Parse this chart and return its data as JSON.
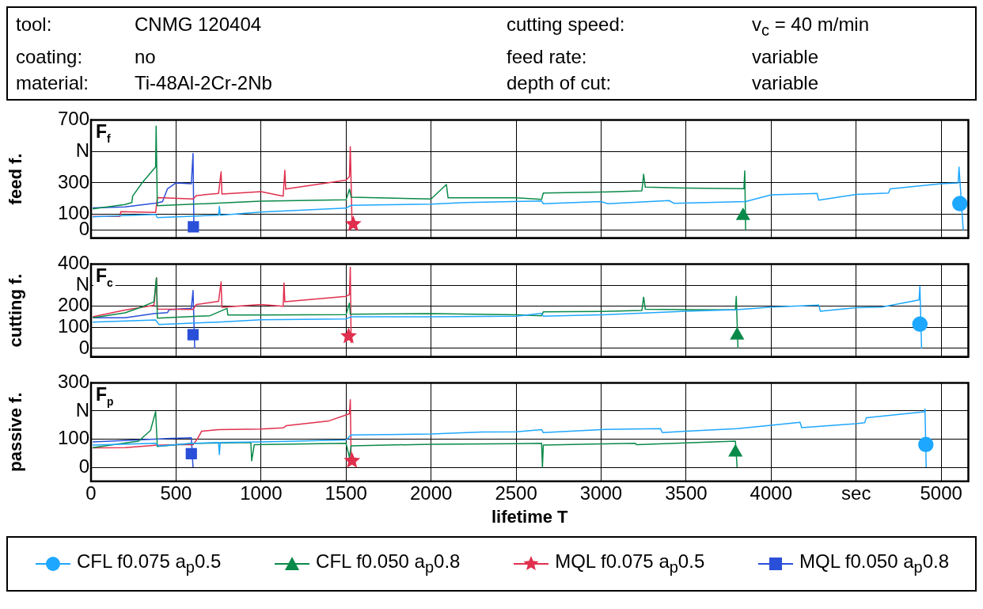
{
  "chart_data": [
    {
      "type": "other",
      "annotations": [
        "tool:",
        "CNMG 120404",
        "cutting speed:",
        "v$_{c}$ = 40 m/min",
        "coating:",
        "no",
        "feed rate:",
        "variable",
        "material:",
        "Ti-48Al-2Cr-2Nb",
        "depth of cut:",
        "variable"
      ]
    },
    {
      "type": "line",
      "ylabel": "feed f.",
      "annotations": [
        "F$_{f}$"
      ],
      "xlim": [
        0,
        5160
      ],
      "ylim": [
        -50,
        700
      ],
      "xticks": [
        0,
        500,
        1000,
        1500,
        2000,
        2500,
        3000,
        3500,
        4000,
        4500,
        5000
      ],
      "yticks": [
        0,
        100,
        300,
        {
          "value": 500,
          "label": "N"
        },
        700
      ],
      "grid": true,
      "tick_labels": "y",
      "series": [
        {
          "color": "#1ea7ff",
          "x": [
            10,
            380,
            390,
            750,
            755,
            760,
            1000,
            1500,
            1530,
            2000,
            2200,
            2650,
            2660,
            3000,
            3040,
            3400,
            3430,
            3850,
            4000,
            4270,
            4280,
            4500,
            4690,
            4700,
            5000,
            5100,
            5105,
            5130
          ],
          "values": [
            85,
            100,
            80,
            95,
            150,
            95,
            115,
            140,
            158,
            165,
            175,
            185,
            168,
            182,
            168,
            188,
            170,
            182,
            224,
            233,
            191,
            227,
            236,
            262,
            295,
            300,
            400,
            0
          ]
        },
        {
          "color": "#0a8a4a",
          "x": [
            10,
            200,
            240,
            245,
            300,
            380,
            383,
            390,
            1000,
            1500,
            1520,
            1530,
            2000,
            2090,
            2100,
            2500,
            2650,
            2660,
            3000,
            3240,
            3250,
            3260,
            3500,
            3840,
            3845,
            3850
          ],
          "values": [
            135,
            163,
            175,
            216,
            300,
            402,
            660,
            155,
            184,
            193,
            260,
            210,
            198,
            290,
            205,
            205,
            195,
            236,
            242,
            250,
            355,
            273,
            267,
            264,
            376,
            0
          ]
        },
        {
          "color": "#e0304e",
          "x": [
            10,
            170,
            175,
            380,
            390,
            600,
            620,
            750,
            765,
            770,
            1000,
            1130,
            1140,
            1145,
            1150,
            1500,
            1520,
            1525,
            1535
          ],
          "values": [
            88,
            88,
            118,
            112,
            207,
            198,
            220,
            233,
            370,
            230,
            245,
            216,
            380,
            260,
            262,
            317,
            340,
            530,
            50
          ]
        },
        {
          "color": "#2a4fd8",
          "x": [
            10,
            200,
            380,
            420,
            450,
            500,
            590,
            600,
            605
          ],
          "values": [
            141,
            148,
            172,
            180,
            263,
            300,
            295,
            487,
            20
          ]
        },
        {
          "type": "scatter",
          "marker": "circle",
          "color": "#1ea7ff",
          "x": [
            5110
          ],
          "values": [
            169
          ]
        },
        {
          "type": "scatter",
          "marker": "triangle",
          "color": "#0a8a4a",
          "x": [
            3835
          ],
          "values": [
            91
          ]
        },
        {
          "type": "scatter",
          "marker": "star",
          "color": "#e0304e",
          "x": [
            1542
          ],
          "values": [
            39
          ]
        },
        {
          "type": "scatter",
          "marker": "square",
          "color": "#2a4fd8",
          "x": [
            602
          ],
          "values": [
            22
          ]
        }
      ]
    },
    {
      "type": "line",
      "ylabel": "cutting f.",
      "annotations": [
        "F$_{c}$"
      ],
      "xlim": [
        0,
        5160
      ],
      "ylim": [
        -40,
        400
      ],
      "xticks": [
        0,
        500,
        1000,
        1500,
        2000,
        2500,
        3000,
        3500,
        4000,
        4500,
        5000
      ],
      "yticks": [
        0,
        100,
        200,
        {
          "value": 300,
          "label": "N"
        },
        400
      ],
      "grid": true,
      "tick_labels": "y",
      "series": [
        {
          "color": "#1ea7ff",
          "x": [
            10,
            380,
            400,
            750,
            1000,
            1500,
            1530,
            2000,
            2500,
            2650,
            2660,
            3000,
            3500,
            3800,
            4000,
            4280,
            4290,
            4500,
            4650,
            4870,
            4875,
            4885
          ],
          "values": [
            125,
            135,
            113,
            125,
            136,
            140,
            150,
            150,
            153,
            166,
            153,
            159,
            176,
            184,
            196,
            205,
            176,
            193,
            196,
            230,
            295,
            0
          ]
        },
        {
          "color": "#0a8a4a",
          "x": [
            10,
            200,
            300,
            370,
            385,
            390,
            700,
            800,
            805,
            1000,
            1500,
            1520,
            1525,
            2000,
            2500,
            2650,
            2660,
            3000,
            3240,
            3250,
            3260,
            3500,
            3790,
            3795,
            3805
          ],
          "values": [
            145,
            169,
            197,
            221,
            335,
            143,
            155,
            190,
            158,
            158,
            160,
            215,
            162,
            165,
            159,
            155,
            173,
            175,
            180,
            243,
            186,
            184,
            183,
            247,
            0
          ]
        },
        {
          "color": "#e0304e",
          "x": [
            10,
            200,
            370,
            385,
            390,
            600,
            620,
            750,
            765,
            770,
            1000,
            1130,
            1135,
            1140,
            1500,
            1520,
            1525,
            1530
          ],
          "values": [
            150,
            182,
            204,
            335,
            187,
            185,
            208,
            223,
            315,
            195,
            208,
            200,
            310,
            221,
            247,
            255,
            385,
            25
          ]
        },
        {
          "color": "#2a4fd8",
          "x": [
            10,
            200,
            370,
            450,
            460,
            590,
            600,
            610
          ],
          "values": [
            145,
            145,
            165,
            170,
            184,
            190,
            275,
            0
          ]
        },
        {
          "type": "scatter",
          "marker": "circle",
          "color": "#1ea7ff",
          "x": [
            4875
          ],
          "values": [
            115
          ]
        },
        {
          "type": "scatter",
          "marker": "triangle",
          "color": "#0a8a4a",
          "x": [
            3800
          ],
          "values": [
            62
          ]
        },
        {
          "type": "scatter",
          "marker": "star",
          "color": "#e0304e",
          "x": [
            1515
          ],
          "values": [
            58
          ]
        },
        {
          "type": "scatter",
          "marker": "square",
          "color": "#2a4fd8",
          "x": [
            600
          ],
          "values": [
            65
          ]
        }
      ]
    },
    {
      "type": "line",
      "ylabel": "passive f.",
      "xlabel": "lifetime T",
      "annotations": [
        "F$_{p}$"
      ],
      "xlim": [
        0,
        5160
      ],
      "ylim": [
        -50,
        300
      ],
      "xticks": [
        0,
        500,
        1000,
        1500,
        2000,
        2500,
        3000,
        3500,
        4000,
        {
          "value": 4500,
          "label": "sec"
        },
        5000
      ],
      "yticks": [
        0,
        100,
        {
          "value": 200,
          "label": "N"
        },
        300
      ],
      "grid": true,
      "legend": "bottom",
      "series": [
        {
          "color": "#1ea7ff",
          "x": [
            10,
            380,
            400,
            600,
            750,
            755,
            760,
            1000,
            1500,
            1530,
            2000,
            2300,
            2500,
            2650,
            2660,
            3000,
            3350,
            3360,
            3500,
            3800,
            4000,
            4170,
            4180,
            4500,
            4550,
            4560,
            4900,
            4905,
            4912
          ],
          "values": [
            79,
            85,
            75,
            85,
            88,
            45,
            88,
            90,
            97,
            115,
            118,
            125,
            126,
            134,
            123,
            134,
            137,
            123,
            128,
            137,
            149,
            160,
            141,
            155,
            158,
            176,
            197,
            207,
            0
          ]
        },
        {
          "color": "#0a8a4a",
          "x": [
            10,
            280,
            350,
            380,
            390,
            600,
            940,
            945,
            960,
            1500,
            1520,
            1530,
            2000,
            2500,
            2650,
            2655,
            2660,
            3000,
            3200,
            3210,
            3790,
            3800
          ],
          "values": [
            70,
            93,
            131,
            198,
            74,
            85,
            88,
            23,
            80,
            85,
            35,
            76,
            82,
            84,
            85,
            0,
            79,
            83,
            85,
            80,
            93,
            0
          ]
        },
        {
          "color": "#e0304e",
          "x": [
            10,
            200,
            380,
            500,
            600,
            630,
            650,
            750,
            1000,
            1130,
            1150,
            1400,
            1500,
            1520,
            1525,
            1530
          ],
          "values": [
            69,
            70,
            78,
            80,
            80,
            105,
            128,
            134,
            136,
            140,
            148,
            165,
            186,
            190,
            240,
            20
          ]
        },
        {
          "color": "#2a4fd8",
          "x": [
            10,
            300,
            450,
            590,
            600
          ],
          "values": [
            90,
            98,
            102,
            105,
            0
          ]
        },
        {
          "type": "scatter",
          "name": "CFL  f0.075 a$_{p}$0.5",
          "marker": "circle",
          "color": "#1ea7ff",
          "x": [
            4910
          ],
          "values": [
            81
          ]
        },
        {
          "type": "scatter",
          "name": "CFL  f0.050 a$_{p}$0.8",
          "marker": "triangle",
          "color": "#0a8a4a",
          "x": [
            3790
          ],
          "values": [
            53
          ]
        },
        {
          "type": "scatter",
          "name": "MQL f0.075 a$_{p}$0.5",
          "marker": "star",
          "color": "#e0304e",
          "x": [
            1535
          ],
          "values": [
            23
          ]
        },
        {
          "type": "scatter",
          "name": "MQL f0.050 a$_{p}$0.8",
          "marker": "square",
          "color": "#2a4fd8",
          "x": [
            590
          ],
          "values": [
            48
          ]
        }
      ]
    }
  ]
}
